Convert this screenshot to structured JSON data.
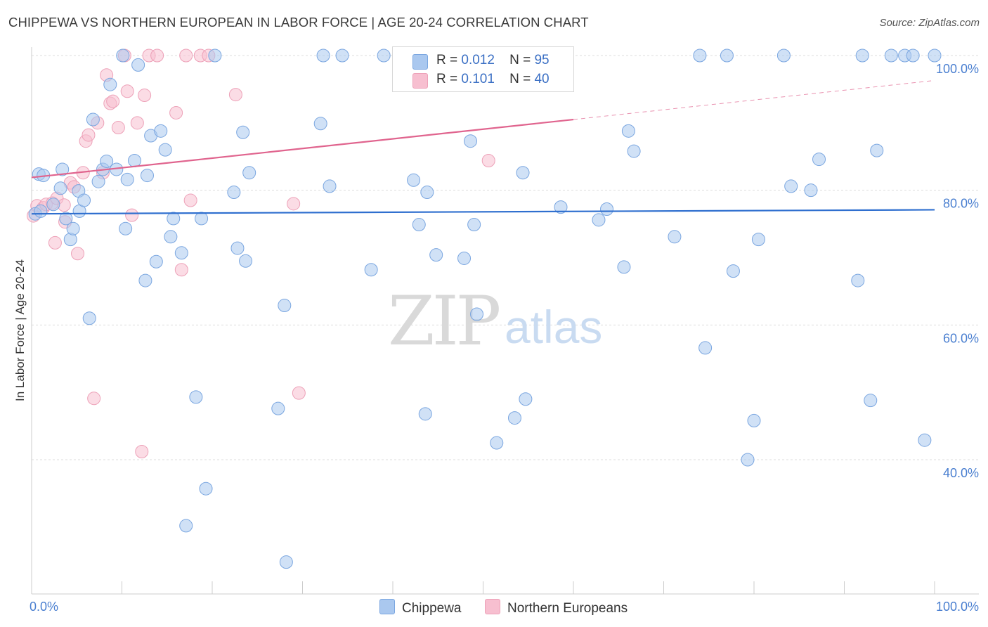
{
  "title": "CHIPPEWA VS NORTHERN EUROPEAN IN LABOR FORCE | AGE 20-24 CORRELATION CHART",
  "source": "Source: ZipAtlas.com",
  "watermark": {
    "zip": "ZIP",
    "atlas": "atlas"
  },
  "legend": {
    "rows": [
      {
        "r_label": "R =",
        "r_value": "0.012",
        "n_label": "N =",
        "n_value": "95"
      },
      {
        "r_label": "R =",
        "r_value": "0.101",
        "n_label": "N =",
        "n_value": "40"
      }
    ]
  },
  "bottom_legend": {
    "series1": "Chippewa",
    "series2": "Northern Europeans"
  },
  "colors": {
    "chippewa_fill": "#aac8ef",
    "chippewa_stroke": "#7aa6e0",
    "chippewa_line": "#2f6fcf",
    "northern_fill": "#f7bfd0",
    "northern_stroke": "#eda1b8",
    "northern_line": "#e0648e",
    "grid": "#dddddd",
    "axis_label": "#4a7fd0"
  },
  "chart_data": {
    "type": "scatter",
    "title": "CHIPPEWA VS NORTHERN EUROPEAN IN LABOR FORCE | AGE 20-24 CORRELATION CHART",
    "xlabel": "",
    "ylabel": "In Labor Force | Age 20-24",
    "xlim": [
      0,
      100
    ],
    "ylim": [
      19,
      102
    ],
    "x_tick_labels": [
      "0.0%",
      "100.0%"
    ],
    "y_tick_labels": [
      "40.0%",
      "60.0%",
      "80.0%",
      "100.0%"
    ],
    "y_ticks": [
      40,
      60,
      80,
      100
    ],
    "grid": true,
    "series": [
      {
        "name": "Chippewa",
        "trend": {
          "x": [
            0,
            100
          ],
          "y": [
            76.5,
            77.1
          ]
        },
        "points": [
          [
            0.4,
            76.5
          ],
          [
            0.8,
            82.4
          ],
          [
            1.3,
            82.2
          ],
          [
            2.4,
            77.9
          ],
          [
            3.2,
            80.3
          ],
          [
            3.4,
            83.1
          ],
          [
            3.8,
            75.8
          ],
          [
            4.3,
            72.7
          ],
          [
            4.6,
            74.3
          ],
          [
            5.2,
            79.9
          ],
          [
            5.3,
            76.9
          ],
          [
            5.8,
            78.5
          ],
          [
            6.4,
            61.0
          ],
          [
            6.8,
            90.5
          ],
          [
            7.4,
            81.3
          ],
          [
            7.9,
            83.1
          ],
          [
            8.3,
            84.3
          ],
          [
            8.7,
            95.7
          ],
          [
            9.4,
            83.1
          ],
          [
            10.1,
            100.0
          ],
          [
            10.4,
            74.3
          ],
          [
            10.6,
            81.6
          ],
          [
            11.4,
            84.4
          ],
          [
            11.8,
            98.6
          ],
          [
            12.6,
            66.6
          ],
          [
            12.8,
            82.2
          ],
          [
            13.2,
            88.1
          ],
          [
            13.8,
            69.4
          ],
          [
            14.3,
            88.8
          ],
          [
            14.8,
            86.0
          ],
          [
            15.4,
            73.1
          ],
          [
            15.7,
            75.8
          ],
          [
            16.6,
            70.7
          ],
          [
            17.1,
            30.2
          ],
          [
            18.2,
            49.3
          ],
          [
            18.8,
            75.8
          ],
          [
            19.3,
            35.7
          ],
          [
            20.3,
            100.0
          ],
          [
            22.4,
            79.7
          ],
          [
            22.8,
            71.4
          ],
          [
            23.4,
            88.6
          ],
          [
            23.7,
            69.5
          ],
          [
            24.1,
            82.6
          ],
          [
            27.3,
            47.6
          ],
          [
            28.0,
            62.9
          ],
          [
            28.2,
            24.8
          ],
          [
            32.0,
            89.9
          ],
          [
            32.3,
            100.0
          ],
          [
            33.0,
            80.6
          ],
          [
            34.4,
            100.0
          ],
          [
            37.6,
            68.2
          ],
          [
            39.0,
            100.0
          ],
          [
            41.0,
            100.0
          ],
          [
            42.3,
            81.5
          ],
          [
            42.9,
            74.9
          ],
          [
            43.6,
            46.8
          ],
          [
            43.8,
            79.7
          ],
          [
            44.8,
            70.4
          ],
          [
            46.0,
            96.0
          ],
          [
            47.9,
            69.9
          ],
          [
            48.6,
            87.3
          ],
          [
            49.0,
            74.9
          ],
          [
            49.3,
            61.6
          ],
          [
            51.5,
            42.5
          ],
          [
            53.5,
            46.2
          ],
          [
            54.4,
            82.6
          ],
          [
            54.7,
            49.0
          ],
          [
            58.6,
            77.5
          ],
          [
            62.8,
            75.6
          ],
          [
            63.7,
            77.2
          ],
          [
            65.6,
            68.6
          ],
          [
            66.1,
            88.8
          ],
          [
            66.7,
            85.8
          ],
          [
            71.2,
            73.1
          ],
          [
            74.0,
            100.0
          ],
          [
            74.6,
            56.6
          ],
          [
            77.0,
            100.0
          ],
          [
            77.7,
            68.0
          ],
          [
            79.3,
            40.0
          ],
          [
            80.0,
            45.8
          ],
          [
            80.5,
            72.7
          ],
          [
            83.3,
            100.0
          ],
          [
            84.1,
            80.6
          ],
          [
            86.3,
            80.0
          ],
          [
            87.2,
            84.6
          ],
          [
            91.5,
            66.6
          ],
          [
            92.0,
            100.0
          ],
          [
            92.9,
            48.8
          ],
          [
            93.6,
            85.9
          ],
          [
            95.2,
            100.0
          ],
          [
            96.7,
            100.0
          ],
          [
            97.6,
            100.0
          ],
          [
            98.9,
            42.9
          ],
          [
            100.0,
            100.0
          ],
          [
            1.0,
            76.9
          ]
        ]
      },
      {
        "name": "Northern Europeans",
        "trend": {
          "x": [
            0,
            60
          ],
          "y": [
            81.9,
            90.5
          ]
        },
        "trend_dashed": {
          "x": [
            60,
            100
          ],
          "y": [
            90.5,
            96.3
          ]
        },
        "points": [
          [
            0.2,
            76.2
          ],
          [
            0.6,
            77.7
          ],
          [
            1.3,
            77.4
          ],
          [
            1.6,
            77.9
          ],
          [
            2.3,
            78.1
          ],
          [
            2.8,
            78.8
          ],
          [
            2.6,
            72.2
          ],
          [
            3.6,
            77.8
          ],
          [
            3.7,
            75.3
          ],
          [
            4.3,
            81.1
          ],
          [
            4.7,
            80.5
          ],
          [
            5.1,
            70.6
          ],
          [
            5.7,
            82.6
          ],
          [
            6.0,
            87.3
          ],
          [
            6.3,
            88.2
          ],
          [
            6.9,
            49.1
          ],
          [
            7.3,
            90.0
          ],
          [
            7.9,
            82.6
          ],
          [
            8.3,
            97.1
          ],
          [
            8.7,
            92.9
          ],
          [
            9.0,
            93.2
          ],
          [
            9.6,
            89.3
          ],
          [
            10.3,
            100.0
          ],
          [
            10.6,
            94.7
          ],
          [
            11.1,
            76.3
          ],
          [
            11.7,
            90.0
          ],
          [
            12.2,
            41.2
          ],
          [
            12.5,
            94.1
          ],
          [
            13.0,
            100.0
          ],
          [
            13.9,
            100.0
          ],
          [
            16.0,
            91.5
          ],
          [
            16.6,
            68.2
          ],
          [
            17.1,
            100.0
          ],
          [
            17.6,
            78.5
          ],
          [
            18.7,
            100.0
          ],
          [
            19.6,
            100.0
          ],
          [
            22.6,
            94.2
          ],
          [
            29.0,
            78.0
          ],
          [
            29.6,
            49.9
          ],
          [
            50.6,
            84.4
          ]
        ]
      }
    ]
  }
}
